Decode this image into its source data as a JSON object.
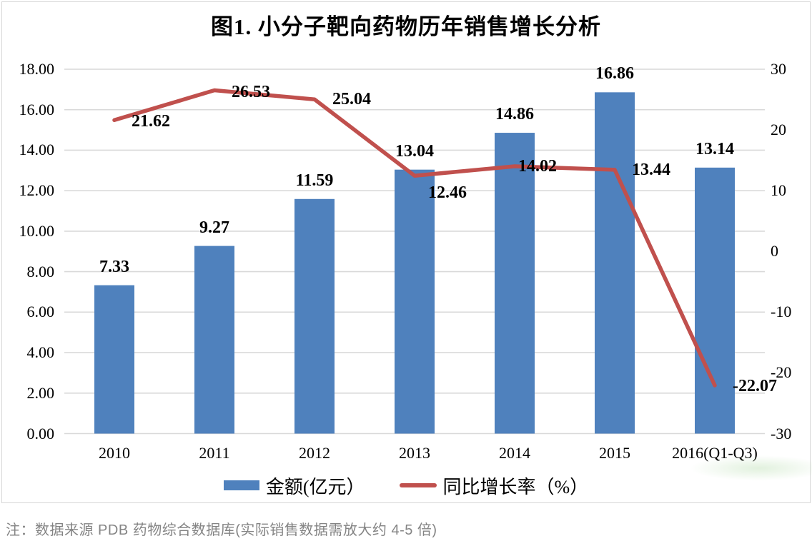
{
  "title": "图1. 小分子靶向药物历年销售增长分析",
  "note": "注：数据来源 PDB 药物综合数据库(实际销售数据需放大约 4-5 倍)",
  "legend": {
    "bar_label": "金额(亿元）",
    "line_label": "同比增长率（%）"
  },
  "colors": {
    "bar": "#4F81BD",
    "line": "#C0504D",
    "grid": "#D9D9D9",
    "frame": "#D6D6D6",
    "label_text": "#000000",
    "note_text": "#848484"
  },
  "chart_data": {
    "type": "combo-bar-line",
    "title": "图1. 小分子靶向药物历年销售增长分析",
    "categories": [
      "2010",
      "2011",
      "2012",
      "2013",
      "2014",
      "2015",
      "2016(Q1-Q3)"
    ],
    "series": [
      {
        "name": "金额(亿元）",
        "type": "bar",
        "axis": "left",
        "values": [
          7.33,
          9.27,
          11.59,
          13.04,
          14.86,
          16.86,
          13.14
        ],
        "labels": [
          "7.33",
          "9.27",
          "11.59",
          "13.04",
          "14.86",
          "16.86",
          "13.14"
        ]
      },
      {
        "name": "同比增长率（%）",
        "type": "line",
        "axis": "right",
        "values": [
          21.62,
          26.53,
          25.04,
          12.46,
          14.02,
          13.44,
          -22.07
        ],
        "labels": [
          "21.62",
          "26.53",
          "25.04",
          "12.46",
          "14.02",
          "13.44",
          "-22.07"
        ]
      }
    ],
    "left_axis": {
      "min": 0,
      "max": 18,
      "step": 2,
      "tick_labels": [
        "18.00",
        "16.00",
        "14.00",
        "12.00",
        "10.00",
        "8.00",
        "6.00",
        "4.00",
        "2.00",
        "0.00"
      ]
    },
    "right_axis": {
      "min": -30,
      "max": 30,
      "step": 10,
      "tick_labels": [
        "30",
        "20",
        "10",
        "0",
        "-10",
        "-20",
        "-30"
      ]
    },
    "grid": true,
    "legend_position": "bottom"
  }
}
